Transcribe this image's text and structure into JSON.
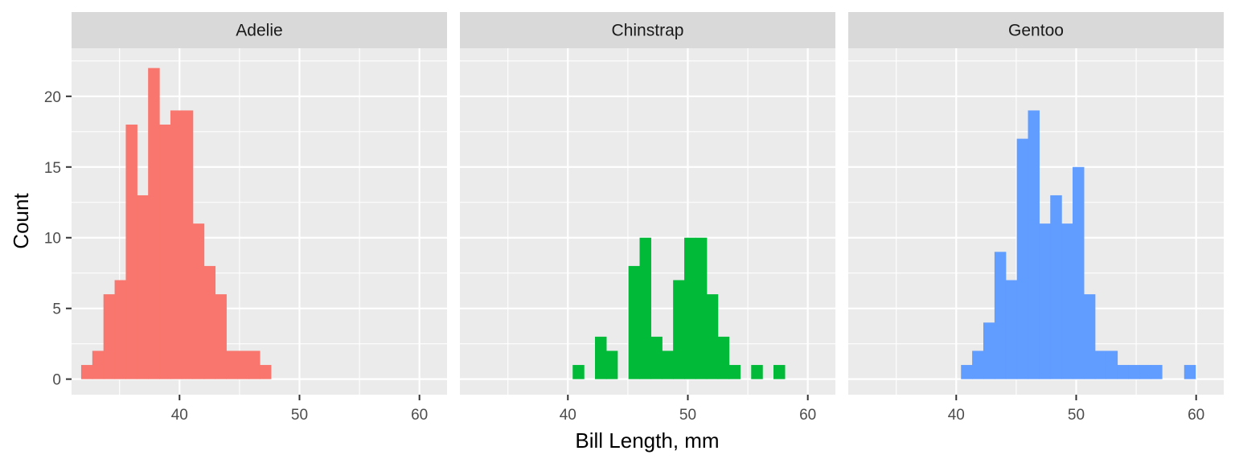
{
  "chart_data": {
    "type": "bar",
    "subtype": "faceted-histogram",
    "title": "",
    "xlabel": "Bill Length, mm",
    "ylabel": "Count",
    "xlim": [
      31,
      62.3
    ],
    "ylim": [
      -1.1,
      23.4
    ],
    "x_ticks": [
      40,
      50,
      60
    ],
    "y_ticks": [
      0,
      5,
      10,
      15,
      20
    ],
    "bin_width": 0.93,
    "grid": true,
    "legend": "none",
    "panel_background": "#ebebeb",
    "strip_background": "#d9d9d9",
    "grid_color": "#ffffff",
    "facets": [
      {
        "name": "Adelie",
        "color": "#f8766d",
        "start": 31.8,
        "counts": [
          1,
          2,
          6,
          7,
          18,
          13,
          22,
          18,
          19,
          19,
          11,
          8,
          6,
          2,
          2,
          2,
          1
        ]
      },
      {
        "name": "Chinstrap",
        "color": "#00ba38",
        "start": 40.4,
        "counts": [
          1,
          0,
          3,
          2,
          0,
          8,
          10,
          3,
          2,
          7,
          10,
          10,
          6,
          3,
          1,
          0,
          1,
          0,
          1
        ]
      },
      {
        "name": "Gentoo",
        "color": "#619cff",
        "start": 40.4,
        "counts": [
          1,
          2,
          4,
          9,
          7,
          17,
          19,
          11,
          13,
          11,
          15,
          6,
          2,
          2,
          1,
          1,
          1,
          1,
          0,
          0,
          1
        ]
      }
    ]
  }
}
